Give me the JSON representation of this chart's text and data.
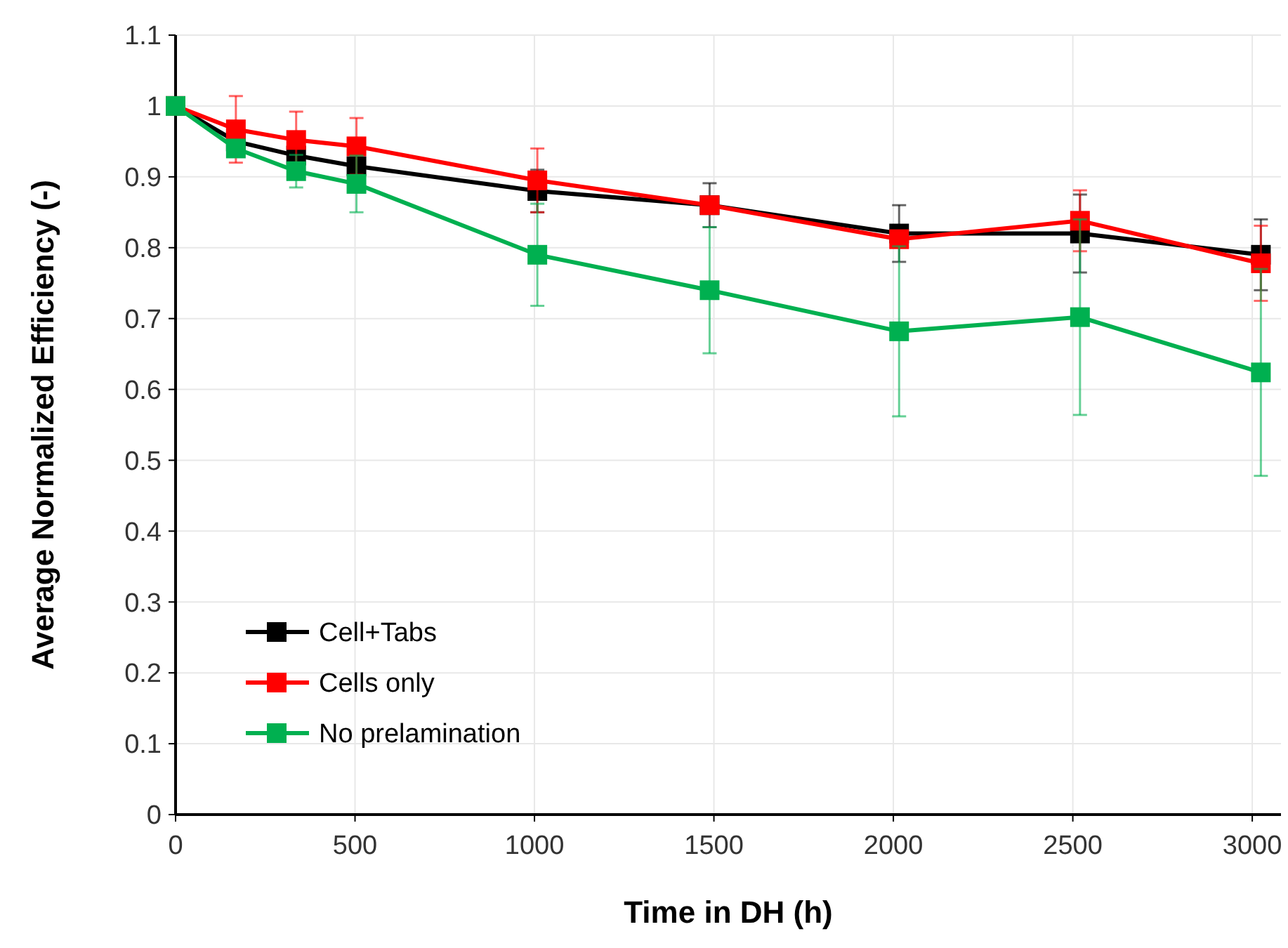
{
  "chart_data": {
    "type": "line",
    "xlabel": "Time in DH (h)",
    "ylabel": "Average Normalized Efficiency (-)",
    "x": [
      0,
      168,
      336,
      504,
      1008,
      1488,
      2016,
      2520,
      3024
    ],
    "xlim": [
      0,
      3080
    ],
    "xticks": [
      0,
      500,
      1000,
      1500,
      2000,
      2500,
      3000
    ],
    "ylim": [
      0,
      1.1
    ],
    "yticks": [
      0,
      0.1,
      0.2,
      0.3,
      0.4,
      0.5,
      0.6,
      0.7,
      0.8,
      0.9,
      1,
      1.1
    ],
    "grid": true,
    "legend": "bottom left",
    "marker": "square",
    "line_style": "solid",
    "series": [
      {
        "name": "Cell+Tabs",
        "color": "#000000",
        "values": [
          1.0,
          0.95,
          0.93,
          0.915,
          0.88,
          0.86,
          0.82,
          0.82,
          0.79
        ],
        "errors": [
          null,
          null,
          null,
          null,
          0.03,
          0.031,
          0.04,
          0.055,
          0.05
        ]
      },
      {
        "name": "Cells only",
        "color": "#ff0000",
        "values": [
          1.0,
          0.967,
          0.952,
          0.943,
          0.895,
          0.86,
          0.812,
          0.838,
          0.778
        ],
        "errors": [
          null,
          0.047,
          0.04,
          0.04,
          0.045,
          null,
          null,
          0.043,
          0.053
        ]
      },
      {
        "name": "No prelamination",
        "color": "#00b050",
        "values": [
          1.0,
          0.94,
          0.908,
          0.89,
          0.79,
          0.74,
          0.682,
          0.702,
          0.624
        ],
        "errors": [
          null,
          null,
          0.023,
          0.04,
          0.072,
          0.089,
          0.12,
          0.138,
          0.146
        ]
      }
    ]
  }
}
